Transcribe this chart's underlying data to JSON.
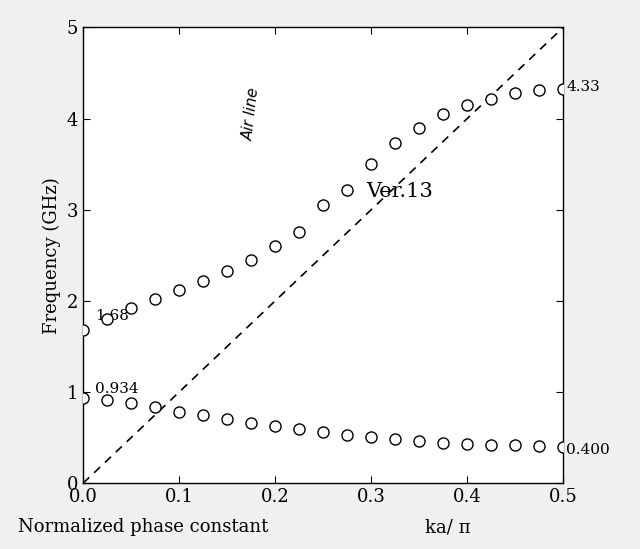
{
  "title": "",
  "xlabel_left": "Normalized phase constant",
  "xlabel_right": "ka/ π",
  "ylabel": "Frequency (GHz)",
  "xlim": [
    0,
    0.5
  ],
  "ylim": [
    0,
    5
  ],
  "xticks": [
    0,
    0.1,
    0.2,
    0.3,
    0.4,
    0.5
  ],
  "yticks": [
    0,
    1,
    2,
    3,
    4,
    5
  ],
  "air_line_label": "Air line",
  "version_label": "Ver.13",
  "annotation_upper_left": "1.68",
  "annotation_lower_left": "0.934",
  "annotation_upper_right": "4.33",
  "annotation_lower_right": "0.400",
  "upper_band_x": [
    0.0,
    0.025,
    0.05,
    0.075,
    0.1,
    0.125,
    0.15,
    0.175,
    0.2,
    0.225,
    0.25,
    0.275,
    0.3,
    0.325,
    0.35,
    0.375,
    0.4,
    0.425,
    0.45,
    0.475,
    0.5
  ],
  "upper_band_y": [
    1.68,
    1.8,
    1.92,
    2.02,
    2.12,
    2.22,
    2.33,
    2.45,
    2.6,
    2.76,
    3.05,
    3.22,
    3.5,
    3.73,
    3.9,
    4.05,
    4.15,
    4.22,
    4.28,
    4.31,
    4.33
  ],
  "lower_band_x": [
    0.0,
    0.025,
    0.05,
    0.075,
    0.1,
    0.125,
    0.15,
    0.175,
    0.2,
    0.225,
    0.25,
    0.275,
    0.3,
    0.325,
    0.35,
    0.375,
    0.4,
    0.425,
    0.45,
    0.475,
    0.5
  ],
  "lower_band_y": [
    0.934,
    0.915,
    0.875,
    0.83,
    0.785,
    0.745,
    0.705,
    0.665,
    0.625,
    0.592,
    0.56,
    0.53,
    0.505,
    0.482,
    0.462,
    0.445,
    0.432,
    0.422,
    0.415,
    0.407,
    0.4
  ],
  "marker_size": 8,
  "marker_color": "white",
  "marker_edge_color": "black",
  "marker_edge_width": 1.0,
  "dashed_color": "black",
  "figsize": [
    6.4,
    5.49
  ],
  "dpi": 100
}
